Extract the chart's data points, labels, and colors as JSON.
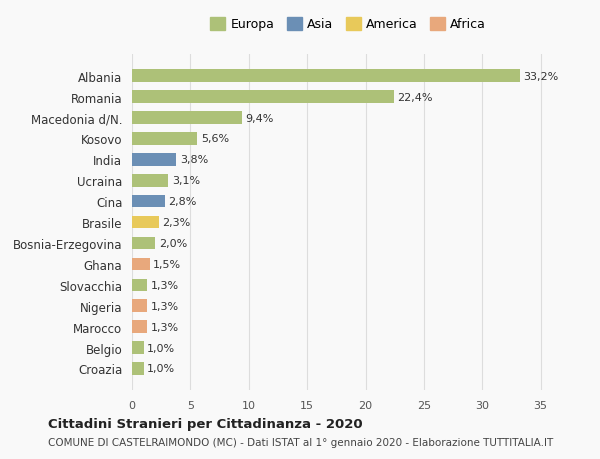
{
  "categories": [
    "Croazia",
    "Belgio",
    "Marocco",
    "Nigeria",
    "Slovacchia",
    "Ghana",
    "Bosnia-Erzegovina",
    "Brasile",
    "Cina",
    "Ucraina",
    "India",
    "Kosovo",
    "Macedonia d/N.",
    "Romania",
    "Albania"
  ],
  "values": [
    1.0,
    1.0,
    1.3,
    1.3,
    1.3,
    1.5,
    2.0,
    2.3,
    2.8,
    3.1,
    3.8,
    5.6,
    9.4,
    22.4,
    33.2
  ],
  "labels": [
    "1,0%",
    "1,0%",
    "1,3%",
    "1,3%",
    "1,3%",
    "1,5%",
    "2,0%",
    "2,3%",
    "2,8%",
    "3,1%",
    "3,8%",
    "5,6%",
    "9,4%",
    "22,4%",
    "33,2%"
  ],
  "continents": [
    "Europa",
    "Europa",
    "Africa",
    "Africa",
    "Europa",
    "Africa",
    "Europa",
    "America",
    "Asia",
    "Europa",
    "Asia",
    "Europa",
    "Europa",
    "Europa",
    "Europa"
  ],
  "colors": {
    "Europa": "#adc178",
    "Asia": "#6b8fb5",
    "America": "#e8c95a",
    "Africa": "#e8a87c"
  },
  "legend_order": [
    "Europa",
    "Asia",
    "America",
    "Africa"
  ],
  "title": "Cittadini Stranieri per Cittadinanza - 2020",
  "subtitle": "COMUNE DI CASTELRAIMONDO (MC) - Dati ISTAT al 1° gennaio 2020 - Elaborazione TUTTITALIA.IT",
  "xlim": [
    0,
    37
  ],
  "xticks": [
    0,
    5,
    10,
    15,
    20,
    25,
    30,
    35
  ],
  "bg_color": "#f9f9f9",
  "grid_color": "#dddddd",
  "bar_height": 0.6
}
